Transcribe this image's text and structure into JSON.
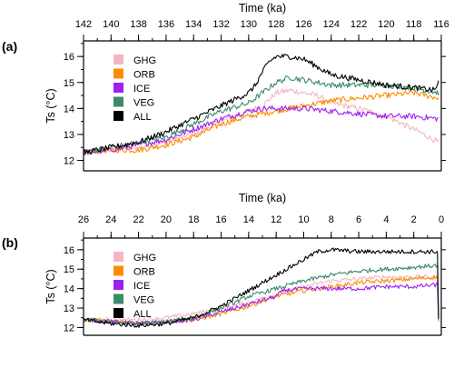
{
  "chart_data": [
    {
      "type": "line",
      "panel_label": "(a)",
      "xlabel": "Time (ka)",
      "ylabel": "Ts (°C)",
      "xlim": [
        142,
        116
      ],
      "ylim": [
        11.6,
        16.6
      ],
      "x_ticks": [
        142,
        140,
        138,
        136,
        134,
        132,
        130,
        128,
        126,
        124,
        122,
        120,
        118,
        116
      ],
      "y_ticks": [
        12,
        13,
        14,
        15,
        16
      ],
      "x_axis_position": "top",
      "legend_position": "top-left",
      "series": [
        {
          "name": "GHG",
          "color": "#f4b6c2",
          "x": [
            142,
            140,
            138,
            136,
            134,
            132,
            130,
            129,
            128,
            127,
            126,
            125,
            124,
            122,
            120,
            118,
            116.2
          ],
          "y": [
            12.3,
            12.4,
            12.5,
            12.7,
            13.0,
            13.5,
            13.9,
            14.1,
            14.6,
            14.7,
            14.6,
            14.5,
            14.2,
            14.0,
            13.7,
            13.2,
            12.7
          ]
        },
        {
          "name": "ORB",
          "color": "#ff8c00",
          "x": [
            142,
            140,
            138,
            136,
            134,
            132,
            130,
            128,
            126,
            124,
            122,
            120,
            118,
            116.2
          ],
          "y": [
            12.3,
            12.4,
            12.4,
            12.6,
            12.9,
            13.4,
            13.7,
            13.9,
            14.1,
            14.3,
            14.4,
            14.5,
            14.6,
            14.4
          ]
        },
        {
          "name": "ICE",
          "color": "#a020f0",
          "x": [
            142,
            140,
            138,
            136,
            134,
            132,
            130,
            129,
            128,
            126,
            124,
            122,
            120,
            118,
            116.2
          ],
          "y": [
            12.3,
            12.4,
            12.6,
            12.8,
            13.2,
            13.6,
            13.9,
            14.0,
            14.0,
            14.0,
            13.9,
            13.8,
            13.7,
            13.7,
            13.6
          ]
        },
        {
          "name": "VEG",
          "color": "#3c8a6a",
          "x": [
            142,
            140,
            138,
            136,
            134,
            132,
            130,
            129,
            128,
            127,
            126,
            124,
            122,
            120,
            118,
            116.2
          ],
          "y": [
            12.3,
            12.5,
            12.7,
            12.9,
            13.4,
            13.9,
            14.2,
            14.6,
            15.0,
            15.2,
            15.1,
            14.9,
            14.9,
            14.9,
            14.8,
            14.6
          ]
        },
        {
          "name": "ALL",
          "color": "#000000",
          "x": [
            142,
            140,
            138,
            136,
            134,
            132,
            130,
            129.5,
            129,
            128.5,
            128,
            127,
            126,
            125,
            124,
            122,
            120,
            118,
            116.5,
            116.2
          ],
          "y": [
            12.3,
            12.5,
            12.7,
            13.1,
            13.6,
            14.1,
            14.6,
            14.9,
            15.4,
            15.8,
            16.0,
            16.0,
            15.9,
            15.6,
            15.3,
            15.1,
            14.9,
            14.8,
            14.7,
            15.0
          ]
        }
      ]
    },
    {
      "type": "line",
      "panel_label": "(b)",
      "xlabel": "Time (ka)",
      "ylabel": "Ts (°C)",
      "xlim": [
        26,
        0
      ],
      "ylim": [
        11.6,
        16.6
      ],
      "x_ticks": [
        26,
        24,
        22,
        20,
        18,
        16,
        14,
        12,
        10,
        8,
        6,
        4,
        2,
        0
      ],
      "y_ticks": [
        12,
        13,
        14,
        15,
        16
      ],
      "x_axis_position": "top",
      "legend_position": "top-left",
      "series": [
        {
          "name": "GHG",
          "color": "#f4b6c2",
          "x": [
            26,
            24,
            22,
            20,
            18,
            16,
            14,
            12,
            10,
            8,
            6,
            4,
            2,
            0.2
          ],
          "y": [
            12.4,
            12.4,
            12.4,
            12.5,
            12.7,
            13.0,
            13.3,
            13.7,
            14.1,
            14.4,
            14.5,
            14.6,
            14.6,
            14.6
          ]
        },
        {
          "name": "ORB",
          "color": "#ff8c00",
          "x": [
            26,
            24,
            22,
            20,
            18,
            16,
            14,
            12,
            10,
            8,
            6,
            4,
            2,
            0.2
          ],
          "y": [
            12.4,
            12.3,
            12.2,
            12.3,
            12.4,
            12.7,
            13.1,
            13.6,
            13.9,
            14.1,
            14.3,
            14.4,
            14.5,
            14.6
          ]
        },
        {
          "name": "ICE",
          "color": "#a020f0",
          "x": [
            26,
            24,
            22,
            20,
            18,
            16,
            14,
            12,
            11.5,
            10,
            8,
            6,
            4,
            2,
            0.2
          ],
          "y": [
            12.4,
            12.3,
            12.2,
            12.3,
            12.4,
            12.8,
            13.2,
            13.6,
            13.9,
            14.0,
            14.0,
            14.0,
            14.1,
            14.1,
            14.2
          ]
        },
        {
          "name": "VEG",
          "color": "#3c8a6a",
          "x": [
            26,
            24,
            22,
            20,
            18,
            16,
            14,
            12,
            10,
            8,
            6,
            4,
            2,
            0.2
          ],
          "y": [
            12.4,
            12.3,
            12.2,
            12.3,
            12.5,
            13.0,
            13.6,
            14.0,
            14.4,
            14.7,
            14.9,
            15.0,
            15.1,
            15.2
          ]
        },
        {
          "name": "ALL",
          "color": "#000000",
          "x": [
            26,
            24,
            22,
            20,
            18,
            16,
            14,
            12,
            10,
            9,
            8,
            6,
            4,
            2,
            0.2
          ],
          "y": [
            12.4,
            12.2,
            12.1,
            12.2,
            12.5,
            13.1,
            13.9,
            14.7,
            15.5,
            15.9,
            16.0,
            15.9,
            15.9,
            15.9,
            15.9
          ]
        }
      ]
    }
  ]
}
